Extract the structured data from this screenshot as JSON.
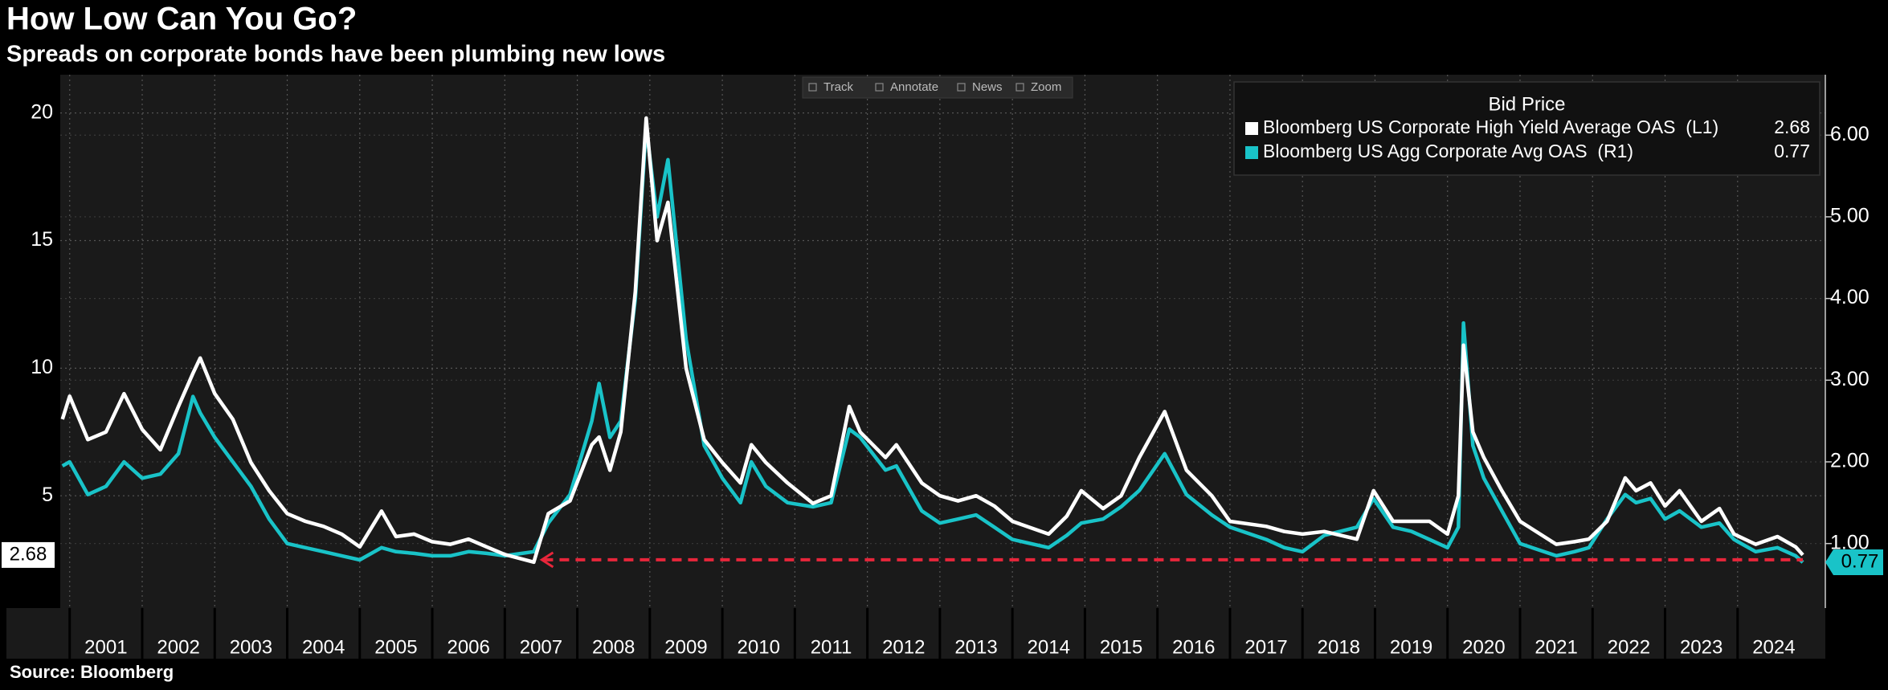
{
  "chart_data": {
    "type": "line",
    "title": "How Low Can You Go?",
    "subtitle": "Spreads on corporate bonds have been plumbing new lows",
    "source": "Source:  Bloomberg",
    "toolbar": [
      "Track",
      "Annotate",
      "News",
      "Zoom"
    ],
    "legend_title": "Bid Price",
    "legend_position": "upper right",
    "grid": true,
    "x": [
      2000.9,
      2001.0,
      2001.25,
      2001.5,
      2001.75,
      2002.0,
      2002.25,
      2002.5,
      2002.7,
      2002.8,
      2003.0,
      2003.25,
      2003.5,
      2003.75,
      2004.0,
      2004.25,
      2004.5,
      2004.75,
      2005.0,
      2005.3,
      2005.5,
      2005.75,
      2006.0,
      2006.25,
      2006.5,
      2006.75,
      2007.0,
      2007.4,
      2007.6,
      2007.9,
      2008.2,
      2008.3,
      2008.45,
      2008.6,
      2008.8,
      2008.95,
      2009.1,
      2009.25,
      2009.5,
      2009.75,
      2010.0,
      2010.25,
      2010.4,
      2010.6,
      2010.9,
      2011.25,
      2011.5,
      2011.75,
      2011.9,
      2012.25,
      2012.4,
      2012.75,
      2013.0,
      2013.25,
      2013.5,
      2013.75,
      2014.0,
      2014.5,
      2014.75,
      2014.95,
      2015.25,
      2015.5,
      2015.75,
      2016.1,
      2016.4,
      2016.75,
      2017.0,
      2017.5,
      2017.75,
      2018.0,
      2018.3,
      2018.75,
      2018.98,
      2019.25,
      2019.5,
      2019.75,
      2020.0,
      2020.15,
      2020.22,
      2020.35,
      2020.5,
      2020.75,
      2021.0,
      2021.5,
      2021.75,
      2021.95,
      2022.2,
      2022.45,
      2022.6,
      2022.8,
      2023.0,
      2023.2,
      2023.5,
      2023.75,
      2023.95,
      2024.25,
      2024.55,
      2024.8,
      2024.9
    ],
    "xlim": [
      2000.87,
      2025.21
    ],
    "xticks": [
      2001,
      2002,
      2003,
      2004,
      2005,
      2006,
      2007,
      2008,
      2009,
      2010,
      2011,
      2012,
      2013,
      2014,
      2015,
      2016,
      2017,
      2018,
      2019,
      2020,
      2021,
      2022,
      2023,
      2024
    ],
    "ylim": [
      0.6,
      21.5
    ],
    "yticks": [
      5,
      10,
      15,
      20
    ],
    "y2lim": [
      0.21,
      6.74
    ],
    "y2ticks": [
      {
        "value": 1,
        "label": "1.00"
      },
      {
        "value": 2,
        "label": "2.00"
      },
      {
        "value": 3,
        "label": "3.00"
      },
      {
        "value": 4,
        "label": "4.00"
      },
      {
        "value": 5,
        "label": "5.00"
      },
      {
        "value": 6,
        "label": "6.00"
      }
    ],
    "series": [
      {
        "name": "Bloomberg US Corporate High Yield Average OAS  (L1)",
        "color": "#ffffff",
        "axis": "y",
        "values": [
          8.0,
          8.9,
          7.2,
          7.5,
          9.0,
          7.6,
          6.8,
          8.5,
          9.8,
          10.4,
          9.0,
          8.0,
          6.3,
          5.2,
          4.3,
          4.0,
          3.8,
          3.5,
          3.0,
          4.4,
          3.4,
          3.5,
          3.2,
          3.1,
          3.3,
          3.0,
          2.7,
          2.4,
          4.3,
          4.8,
          7.0,
          7.3,
          6.0,
          7.5,
          13.0,
          19.8,
          15.0,
          16.5,
          10.0,
          7.2,
          6.3,
          5.5,
          7.0,
          6.3,
          5.5,
          4.7,
          5.0,
          8.5,
          7.5,
          6.5,
          7.0,
          5.5,
          5.0,
          4.8,
          5.0,
          4.6,
          4.0,
          3.5,
          4.2,
          5.2,
          4.5,
          5.0,
          6.5,
          8.3,
          6.0,
          5.0,
          4.0,
          3.8,
          3.6,
          3.5,
          3.6,
          3.3,
          5.2,
          4.0,
          4.0,
          4.0,
          3.5,
          5.0,
          10.9,
          7.5,
          6.5,
          5.2,
          4.0,
          3.1,
          3.2,
          3.3,
          4.0,
          5.7,
          5.2,
          5.5,
          4.6,
          5.2,
          4.0,
          4.5,
          3.5,
          3.1,
          3.4,
          3.0,
          2.68
        ]
      },
      {
        "name": "Bloomberg US Agg Corporate Avg OAS  (R1)",
        "color": "#19c3c8",
        "axis": "y2",
        "values": [
          1.95,
          2.0,
          1.6,
          1.7,
          2.0,
          1.8,
          1.85,
          2.1,
          2.8,
          2.6,
          2.3,
          2.0,
          1.7,
          1.3,
          1.0,
          0.95,
          0.9,
          0.85,
          0.8,
          0.95,
          0.9,
          0.88,
          0.85,
          0.85,
          0.9,
          0.88,
          0.85,
          0.9,
          1.25,
          1.6,
          2.5,
          2.96,
          2.3,
          2.5,
          4.0,
          6.1,
          5.0,
          5.7,
          3.5,
          2.2,
          1.8,
          1.5,
          2.0,
          1.7,
          1.5,
          1.45,
          1.5,
          2.4,
          2.3,
          1.9,
          1.95,
          1.4,
          1.25,
          1.3,
          1.35,
          1.2,
          1.05,
          0.95,
          1.1,
          1.25,
          1.3,
          1.45,
          1.65,
          2.1,
          1.6,
          1.35,
          1.2,
          1.05,
          0.95,
          0.9,
          1.1,
          1.2,
          1.55,
          1.2,
          1.15,
          1.05,
          0.95,
          1.2,
          3.7,
          2.2,
          1.8,
          1.4,
          1.0,
          0.85,
          0.9,
          0.95,
          1.3,
          1.6,
          1.5,
          1.55,
          1.3,
          1.4,
          1.2,
          1.25,
          1.05,
          0.9,
          0.95,
          0.85,
          0.77
        ]
      }
    ]
  }
}
